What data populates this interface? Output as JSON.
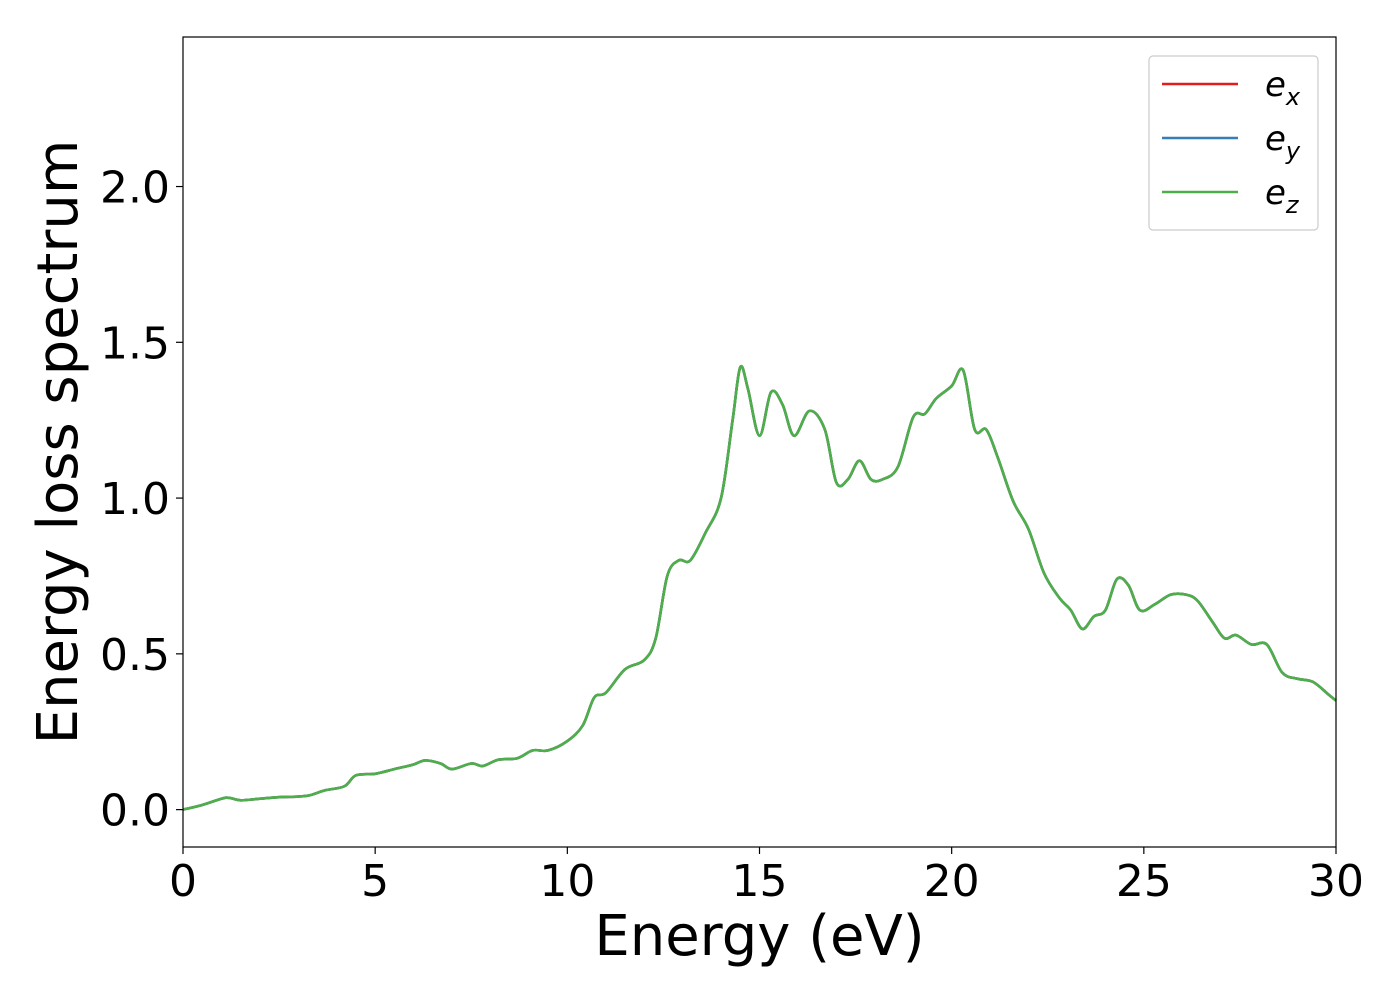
{
  "chart_data": {
    "type": "line",
    "title": "",
    "xlabel": "Energy (eV)",
    "ylabel": "Energy loss spectrum",
    "xlim": [
      0,
      30
    ],
    "ylim": [
      -0.12,
      2.48
    ],
    "xticks": [
      0,
      5,
      10,
      15,
      20,
      25,
      30
    ],
    "yticks": [
      0.0,
      0.5,
      1.0,
      1.5,
      2.0
    ],
    "xtick_labels": [
      "0",
      "5",
      "10",
      "15",
      "20",
      "25",
      "30"
    ],
    "ytick_labels": [
      "0.0",
      "0.5",
      "1.0",
      "1.5",
      "2.0"
    ],
    "grid": false,
    "legend_position": "top-right",
    "x": [
      0,
      0.5,
      1.0,
      1.2,
      1.5,
      2.0,
      2.5,
      3.0,
      3.3,
      3.7,
      4.2,
      4.5,
      5.0,
      5.5,
      6.0,
      6.3,
      6.7,
      7.0,
      7.5,
      7.8,
      8.2,
      8.7,
      9.1,
      9.5,
      10.0,
      10.4,
      10.7,
      11.0,
      11.5,
      12.0,
      12.3,
      12.6,
      12.9,
      13.2,
      13.6,
      14.0,
      14.3,
      14.5,
      14.7,
      15.0,
      15.3,
      15.6,
      15.9,
      16.3,
      16.7,
      17.0,
      17.3,
      17.6,
      17.9,
      18.2,
      18.6,
      19.0,
      19.3,
      19.6,
      20.0,
      20.3,
      20.6,
      20.9,
      21.2,
      21.6,
      22.0,
      22.4,
      22.8,
      23.1,
      23.4,
      23.7,
      24.0,
      24.3,
      24.6,
      24.9,
      25.3,
      25.7,
      26.1,
      26.4,
      26.8,
      27.1,
      27.4,
      27.8,
      28.2,
      28.6,
      29.0,
      29.4,
      29.8,
      30.0
    ],
    "series": [
      {
        "name": "e_x",
        "label_base": "e",
        "label_sub": "x",
        "color": "#e41a1c",
        "values": [
          0.0,
          0.015,
          0.035,
          0.038,
          0.03,
          0.035,
          0.04,
          0.042,
          0.046,
          0.062,
          0.075,
          0.11,
          0.115,
          0.13,
          0.145,
          0.158,
          0.148,
          0.13,
          0.148,
          0.14,
          0.16,
          0.165,
          0.19,
          0.19,
          0.22,
          0.27,
          0.36,
          0.375,
          0.45,
          0.48,
          0.55,
          0.75,
          0.8,
          0.8,
          0.89,
          1.0,
          1.25,
          1.42,
          1.35,
          1.2,
          1.34,
          1.3,
          1.2,
          1.28,
          1.22,
          1.05,
          1.06,
          1.12,
          1.06,
          1.06,
          1.1,
          1.26,
          1.27,
          1.32,
          1.36,
          1.41,
          1.22,
          1.22,
          1.13,
          0.99,
          0.9,
          0.76,
          0.68,
          0.64,
          0.58,
          0.62,
          0.64,
          0.74,
          0.72,
          0.64,
          0.66,
          0.69,
          0.69,
          0.67,
          0.6,
          0.55,
          0.56,
          0.53,
          0.53,
          0.44,
          0.42,
          0.41,
          0.37,
          0.35
        ]
      },
      {
        "name": "e_y",
        "label_base": "e",
        "label_sub": "y",
        "color": "#377eb8",
        "values": [
          0.0,
          0.015,
          0.035,
          0.038,
          0.03,
          0.035,
          0.04,
          0.042,
          0.046,
          0.062,
          0.075,
          0.11,
          0.115,
          0.13,
          0.145,
          0.158,
          0.148,
          0.13,
          0.148,
          0.14,
          0.16,
          0.165,
          0.19,
          0.19,
          0.22,
          0.27,
          0.36,
          0.375,
          0.45,
          0.48,
          0.55,
          0.75,
          0.8,
          0.8,
          0.89,
          1.0,
          1.25,
          1.42,
          1.35,
          1.2,
          1.34,
          1.3,
          1.2,
          1.28,
          1.22,
          1.05,
          1.06,
          1.12,
          1.06,
          1.06,
          1.1,
          1.26,
          1.27,
          1.32,
          1.36,
          1.41,
          1.22,
          1.22,
          1.13,
          0.99,
          0.9,
          0.76,
          0.68,
          0.64,
          0.58,
          0.62,
          0.64,
          0.74,
          0.72,
          0.64,
          0.66,
          0.69,
          0.69,
          0.67,
          0.6,
          0.55,
          0.56,
          0.53,
          0.53,
          0.44,
          0.42,
          0.41,
          0.37,
          0.35
        ]
      },
      {
        "name": "e_z",
        "label_base": "e",
        "label_sub": "z",
        "color": "#4daf4a",
        "values": [
          0.0,
          0.015,
          0.035,
          0.038,
          0.03,
          0.035,
          0.04,
          0.042,
          0.046,
          0.062,
          0.075,
          0.11,
          0.115,
          0.13,
          0.145,
          0.158,
          0.148,
          0.13,
          0.148,
          0.14,
          0.16,
          0.165,
          0.19,
          0.19,
          0.22,
          0.27,
          0.36,
          0.375,
          0.45,
          0.48,
          0.55,
          0.75,
          0.8,
          0.8,
          0.89,
          1.0,
          1.25,
          1.42,
          1.35,
          1.2,
          1.34,
          1.3,
          1.2,
          1.28,
          1.22,
          1.05,
          1.06,
          1.12,
          1.06,
          1.06,
          1.1,
          1.26,
          1.27,
          1.32,
          1.36,
          1.41,
          1.22,
          1.22,
          1.13,
          0.99,
          0.9,
          0.76,
          0.68,
          0.64,
          0.58,
          0.62,
          0.64,
          0.74,
          0.72,
          0.64,
          0.66,
          0.69,
          0.69,
          0.67,
          0.6,
          0.55,
          0.56,
          0.53,
          0.53,
          0.44,
          0.42,
          0.41,
          0.37,
          0.35
        ]
      }
    ]
  }
}
